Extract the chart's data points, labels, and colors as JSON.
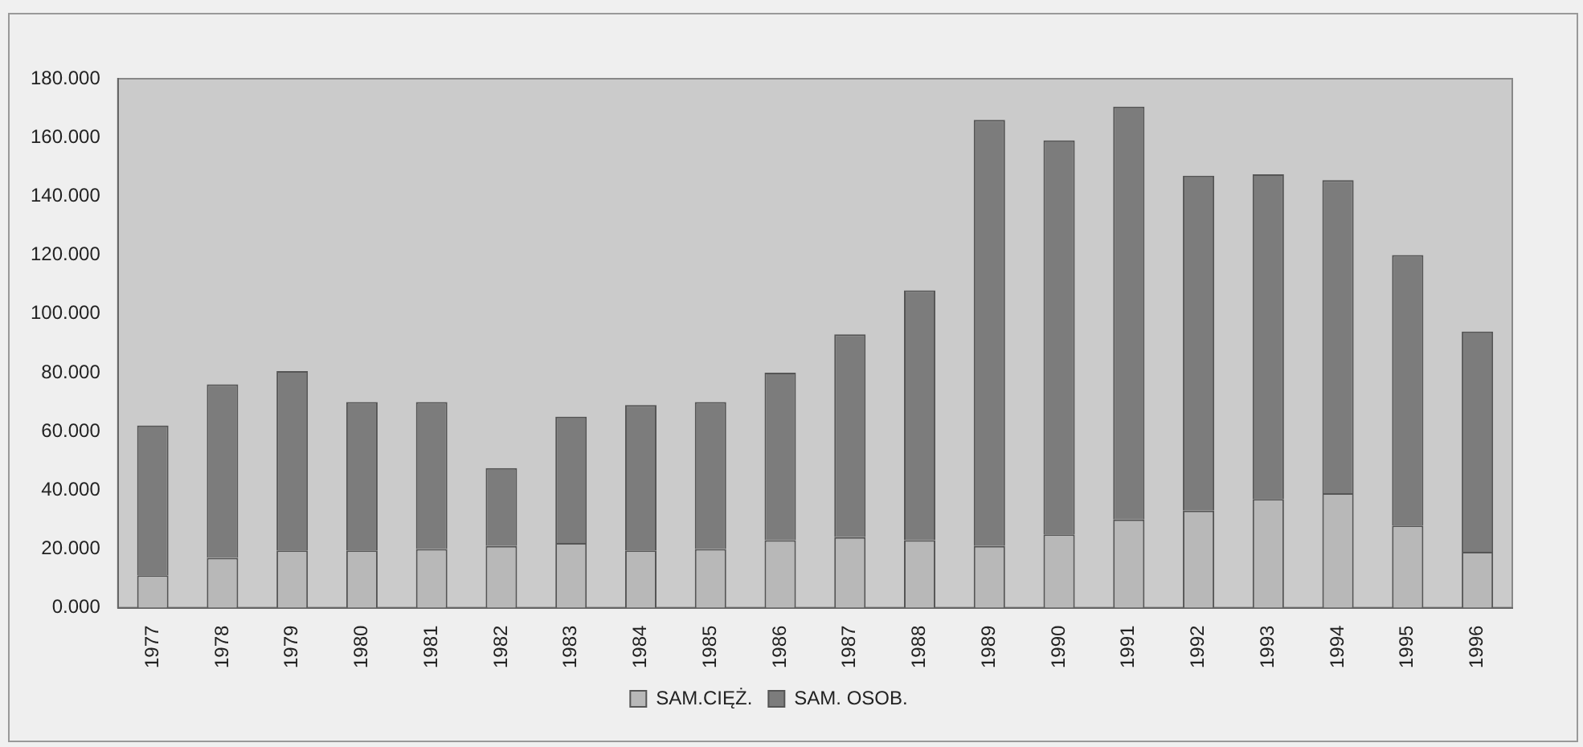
{
  "chart_data": {
    "type": "bar",
    "stacked": true,
    "categories": [
      "1977",
      "1978",
      "1979",
      "1980",
      "1981",
      "1982",
      "1983",
      "1984",
      "1985",
      "1986",
      "1987",
      "1988",
      "1989",
      "1990",
      "1991",
      "1992",
      "1993",
      "1994",
      "1995",
      "1996"
    ],
    "series": [
      {
        "name": "SAM.CIĘŻ.",
        "color": "#b8b8b8",
        "values": [
          11,
          17,
          19.5,
          19.5,
          20,
          21,
          22,
          19.5,
          20,
          23,
          24,
          23,
          21,
          25,
          30,
          33,
          37,
          39,
          28,
          19
        ]
      },
      {
        "name": "SAM. OSOB.",
        "color": "#7c7c7c",
        "values": [
          51,
          59,
          61,
          50.5,
          50,
          26.5,
          43,
          49.5,
          50,
          57,
          69,
          85,
          145,
          134,
          140.5,
          114,
          110.5,
          106.5,
          92,
          75
        ]
      }
    ],
    "ylim": [
      0,
      180
    ],
    "yticks": [
      {
        "value": 0,
        "label": "0.000"
      },
      {
        "value": 20,
        "label": "20.000"
      },
      {
        "value": 40,
        "label": "40.000"
      },
      {
        "value": 60,
        "label": "60.000"
      },
      {
        "value": 80,
        "label": "80.000"
      },
      {
        "value": 100,
        "label": "100.000"
      },
      {
        "value": 120,
        "label": "120.000"
      },
      {
        "value": 140,
        "label": "140.000"
      },
      {
        "value": 160,
        "label": "160.000"
      },
      {
        "value": 180,
        "label": "180.000"
      }
    ],
    "grid": false,
    "legend": "bottom"
  }
}
